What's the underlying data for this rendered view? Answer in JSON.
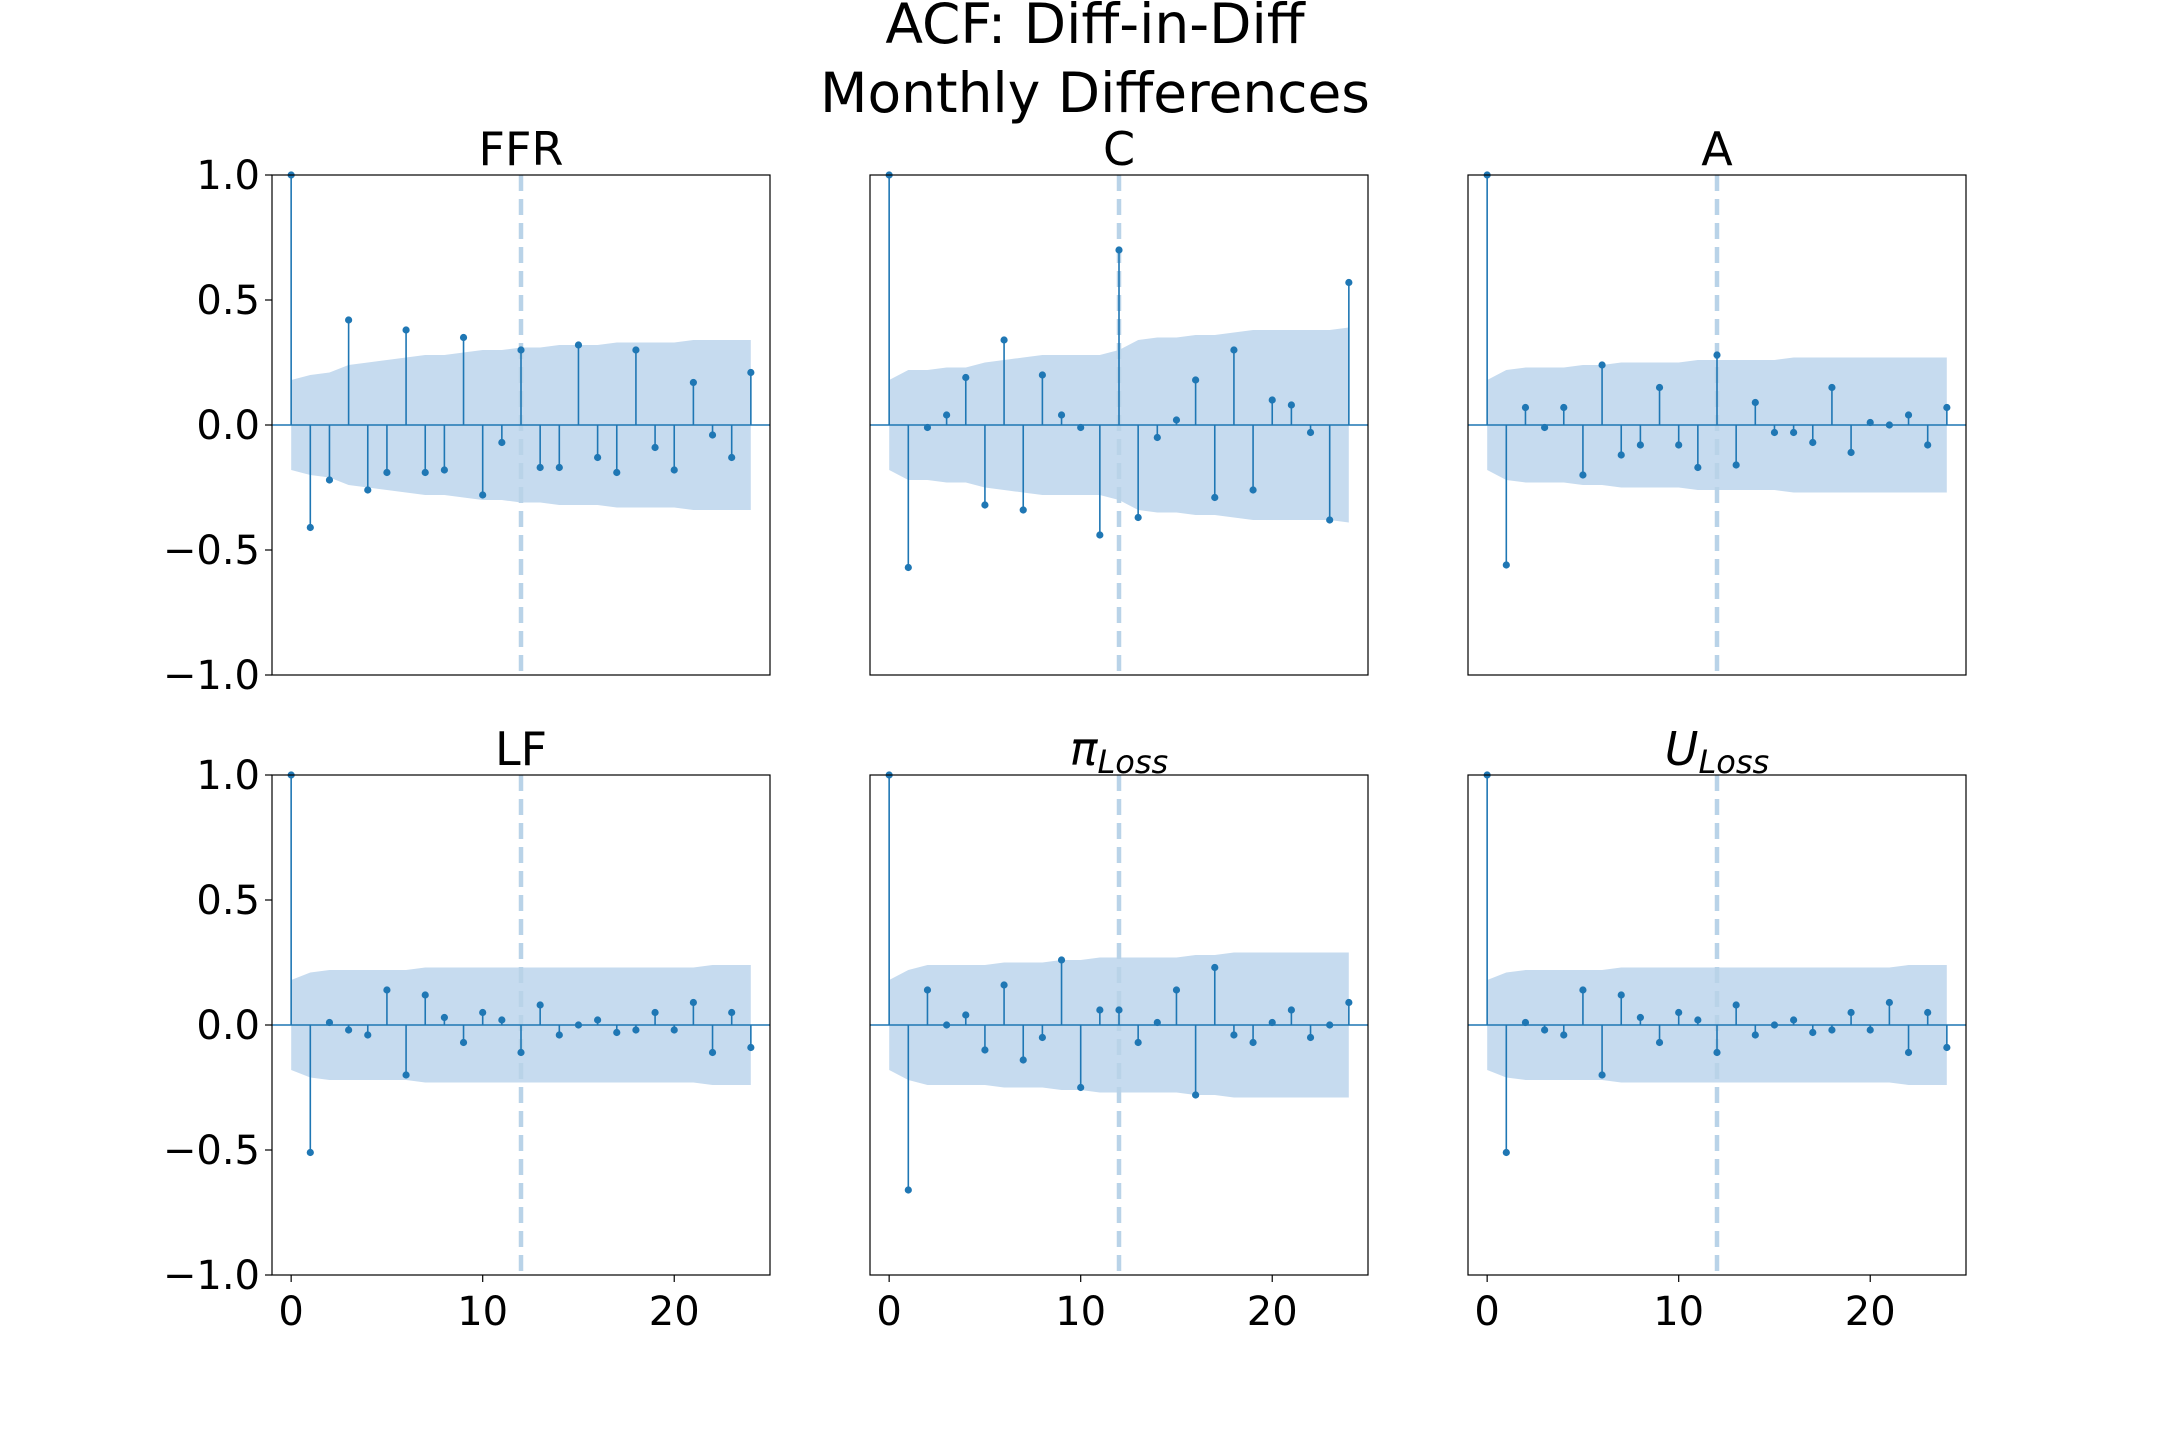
{
  "suptitle": {
    "line1": "ACF: Diff-in-Diff",
    "line2": "Monthly Differences"
  },
  "colors": {
    "stem": "#1f77b4",
    "band": "#c6dbef",
    "vline": "#b9d3e8"
  },
  "chart_data": [
    {
      "type": "stem",
      "title": "FFR",
      "xlim": [
        -1,
        25
      ],
      "ylim": [
        -1,
        1
      ],
      "xticks": [
        0,
        10,
        20
      ],
      "yticks": [
        1.0,
        0.5,
        0.0,
        -0.5,
        -1.0
      ],
      "ytick_labels": [
        "1.0",
        "0.5",
        "0.0",
        "−0.5",
        "−1.0"
      ],
      "xtick_labels": [
        "0",
        "10",
        "20"
      ],
      "vline_at": 12,
      "x": [
        0,
        1,
        2,
        3,
        4,
        5,
        6,
        7,
        8,
        9,
        10,
        11,
        12,
        13,
        14,
        15,
        16,
        17,
        18,
        19,
        20,
        21,
        22,
        23,
        24
      ],
      "values": [
        1.0,
        -0.41,
        -0.22,
        0.42,
        -0.26,
        -0.19,
        0.38,
        -0.19,
        -0.18,
        0.35,
        -0.28,
        -0.07,
        0.3,
        -0.17,
        -0.17,
        0.32,
        -0.13,
        -0.19,
        0.3,
        -0.09,
        -0.18,
        0.17,
        -0.04,
        -0.13,
        0.21
      ],
      "conf_band": [
        0.18,
        0.2,
        0.21,
        0.24,
        0.25,
        0.26,
        0.27,
        0.28,
        0.28,
        0.29,
        0.3,
        0.3,
        0.31,
        0.31,
        0.32,
        0.32,
        0.32,
        0.33,
        0.33,
        0.33,
        0.33,
        0.34,
        0.34,
        0.34,
        0.34
      ]
    },
    {
      "type": "stem",
      "title": "C",
      "xlim": [
        -1,
        25
      ],
      "ylim": [
        -1,
        1
      ],
      "xticks": [
        0,
        10,
        20
      ],
      "yticks": [
        1.0,
        0.5,
        0.0,
        -0.5,
        -1.0
      ],
      "ytick_labels": [],
      "xtick_labels": [
        "0",
        "10",
        "20"
      ],
      "vline_at": 12,
      "x": [
        0,
        1,
        2,
        3,
        4,
        5,
        6,
        7,
        8,
        9,
        10,
        11,
        12,
        13,
        14,
        15,
        16,
        17,
        18,
        19,
        20,
        21,
        22,
        23,
        24
      ],
      "values": [
        1.0,
        -0.57,
        -0.01,
        0.04,
        0.19,
        -0.32,
        0.34,
        -0.34,
        0.2,
        0.04,
        -0.01,
        -0.44,
        0.7,
        -0.37,
        -0.05,
        0.02,
        0.18,
        -0.29,
        0.3,
        -0.26,
        0.1,
        0.08,
        -0.03,
        -0.38,
        0.57
      ],
      "conf_band": [
        0.18,
        0.22,
        0.22,
        0.23,
        0.23,
        0.25,
        0.26,
        0.27,
        0.28,
        0.28,
        0.28,
        0.28,
        0.3,
        0.34,
        0.35,
        0.35,
        0.36,
        0.36,
        0.37,
        0.38,
        0.38,
        0.38,
        0.38,
        0.38,
        0.39
      ]
    },
    {
      "type": "stem",
      "title": "A",
      "xlim": [
        -1,
        25
      ],
      "ylim": [
        -1,
        1
      ],
      "xticks": [
        0,
        10,
        20
      ],
      "yticks": [
        1.0,
        0.5,
        0.0,
        -0.5,
        -1.0
      ],
      "ytick_labels": [],
      "xtick_labels": [
        "0",
        "10",
        "20"
      ],
      "vline_at": 12,
      "x": [
        0,
        1,
        2,
        3,
        4,
        5,
        6,
        7,
        8,
        9,
        10,
        11,
        12,
        13,
        14,
        15,
        16,
        17,
        18,
        19,
        20,
        21,
        22,
        23,
        24
      ],
      "values": [
        1.0,
        -0.56,
        0.07,
        -0.01,
        0.07,
        -0.2,
        0.24,
        -0.12,
        -0.08,
        0.15,
        -0.08,
        -0.17,
        0.28,
        -0.16,
        0.09,
        -0.03,
        -0.03,
        -0.07,
        0.15,
        -0.11,
        0.01,
        0.0,
        0.04,
        -0.08,
        0.07
      ],
      "conf_band": [
        0.18,
        0.22,
        0.23,
        0.23,
        0.23,
        0.24,
        0.24,
        0.25,
        0.25,
        0.25,
        0.25,
        0.26,
        0.26,
        0.26,
        0.26,
        0.26,
        0.27,
        0.27,
        0.27,
        0.27,
        0.27,
        0.27,
        0.27,
        0.27,
        0.27
      ]
    },
    {
      "type": "stem",
      "title": "LF",
      "xlim": [
        -1,
        25
      ],
      "ylim": [
        -1,
        1
      ],
      "xticks": [
        0,
        10,
        20
      ],
      "yticks": [
        1.0,
        0.5,
        0.0,
        -0.5,
        -1.0
      ],
      "ytick_labels": [
        "1.0",
        "0.5",
        "0.0",
        "−0.5",
        "−1.0"
      ],
      "xtick_labels": [
        "0",
        "10",
        "20"
      ],
      "vline_at": 12,
      "x": [
        0,
        1,
        2,
        3,
        4,
        5,
        6,
        7,
        8,
        9,
        10,
        11,
        12,
        13,
        14,
        15,
        16,
        17,
        18,
        19,
        20,
        21,
        22,
        23,
        24
      ],
      "values": [
        1.0,
        -0.51,
        0.01,
        -0.02,
        -0.04,
        0.14,
        -0.2,
        0.12,
        0.03,
        -0.07,
        0.05,
        0.02,
        -0.11,
        0.08,
        -0.04,
        0.0,
        0.02,
        -0.03,
        -0.02,
        0.05,
        -0.02,
        0.09,
        -0.11,
        0.05,
        -0.09
      ],
      "conf_band": [
        0.18,
        0.21,
        0.22,
        0.22,
        0.22,
        0.22,
        0.22,
        0.23,
        0.23,
        0.23,
        0.23,
        0.23,
        0.23,
        0.23,
        0.23,
        0.23,
        0.23,
        0.23,
        0.23,
        0.23,
        0.23,
        0.23,
        0.24,
        0.24,
        0.24
      ]
    },
    {
      "type": "stem",
      "title": "π",
      "title_sub": "Loss",
      "xlim": [
        -1,
        25
      ],
      "ylim": [
        -1,
        1
      ],
      "xticks": [
        0,
        10,
        20
      ],
      "yticks": [
        1.0,
        0.5,
        0.0,
        -0.5,
        -1.0
      ],
      "ytick_labels": [],
      "xtick_labels": [
        "0",
        "10",
        "20"
      ],
      "vline_at": 12,
      "x": [
        0,
        1,
        2,
        3,
        4,
        5,
        6,
        7,
        8,
        9,
        10,
        11,
        12,
        13,
        14,
        15,
        16,
        17,
        18,
        19,
        20,
        21,
        22,
        23,
        24
      ],
      "values": [
        1.0,
        -0.66,
        0.14,
        0.0,
        0.04,
        -0.1,
        0.16,
        -0.14,
        -0.05,
        0.26,
        -0.25,
        0.06,
        0.06,
        -0.07,
        0.01,
        0.14,
        -0.28,
        0.23,
        -0.04,
        -0.07,
        0.01,
        0.06,
        -0.05,
        0.0,
        0.09
      ],
      "conf_band": [
        0.18,
        0.22,
        0.24,
        0.24,
        0.24,
        0.24,
        0.25,
        0.25,
        0.25,
        0.26,
        0.26,
        0.27,
        0.27,
        0.27,
        0.27,
        0.27,
        0.28,
        0.28,
        0.29,
        0.29,
        0.29,
        0.29,
        0.29,
        0.29,
        0.29
      ]
    },
    {
      "type": "stem",
      "title": "U",
      "title_sub": "Loss",
      "xlim": [
        -1,
        25
      ],
      "ylim": [
        -1,
        1
      ],
      "xticks": [
        0,
        10,
        20
      ],
      "yticks": [
        1.0,
        0.5,
        0.0,
        -0.5,
        -1.0
      ],
      "ytick_labels": [],
      "xtick_labels": [
        "0",
        "10",
        "20"
      ],
      "vline_at": 12,
      "x": [
        0,
        1,
        2,
        3,
        4,
        5,
        6,
        7,
        8,
        9,
        10,
        11,
        12,
        13,
        14,
        15,
        16,
        17,
        18,
        19,
        20,
        21,
        22,
        23,
        24
      ],
      "values": [
        1.0,
        -0.51,
        0.01,
        -0.02,
        -0.04,
        0.14,
        -0.2,
        0.12,
        0.03,
        -0.07,
        0.05,
        0.02,
        -0.11,
        0.08,
        -0.04,
        0.0,
        0.02,
        -0.03,
        -0.02,
        0.05,
        -0.02,
        0.09,
        -0.11,
        0.05,
        -0.09
      ],
      "conf_band": [
        0.18,
        0.21,
        0.22,
        0.22,
        0.22,
        0.22,
        0.22,
        0.23,
        0.23,
        0.23,
        0.23,
        0.23,
        0.23,
        0.23,
        0.23,
        0.23,
        0.23,
        0.23,
        0.23,
        0.23,
        0.23,
        0.23,
        0.24,
        0.24,
        0.24
      ]
    }
  ]
}
